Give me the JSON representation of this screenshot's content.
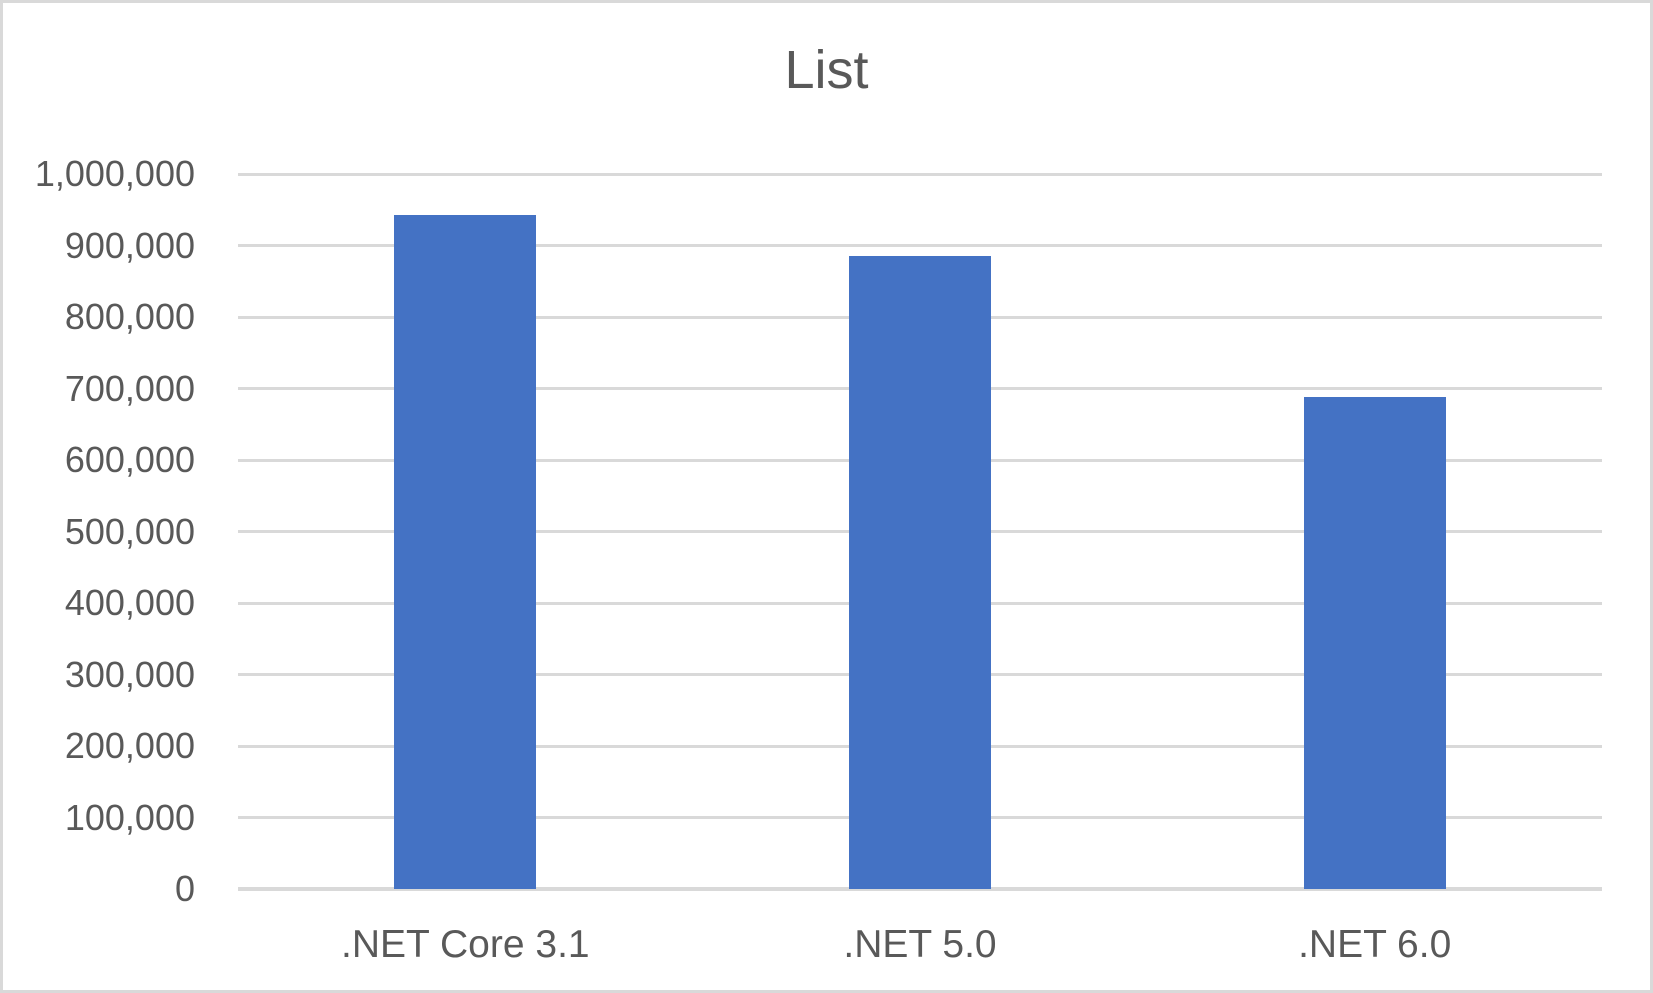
{
  "chart_data": {
    "type": "bar",
    "title": "List",
    "categories": [
      ".NET Core 3.1",
      ".NET 5.0",
      ".NET 6.0"
    ],
    "values": [
      943000,
      886000,
      688000
    ],
    "xlabel": "",
    "ylabel": "",
    "ylim": [
      0,
      1000000
    ],
    "ytick_step": 100000,
    "yticks": [
      {
        "value": 0,
        "label": "0"
      },
      {
        "value": 100000,
        "label": "100,000"
      },
      {
        "value": 200000,
        "label": "200,000"
      },
      {
        "value": 300000,
        "label": "300,000"
      },
      {
        "value": 400000,
        "label": "400,000"
      },
      {
        "value": 500000,
        "label": "500,000"
      },
      {
        "value": 600000,
        "label": "600,000"
      },
      {
        "value": 700000,
        "label": "700,000"
      },
      {
        "value": 800000,
        "label": "800,000"
      },
      {
        "value": 900000,
        "label": "900,000"
      },
      {
        "value": 1000000,
        "label": "1,000,000"
      }
    ],
    "grid": true,
    "legend_position": "none",
    "colors": {
      "bar": "#4472C4",
      "text": "#595959",
      "gridline": "#D9D9D9",
      "axis_line": "#D9D9D9",
      "background": "#FFFFFF",
      "border": "#D9D9D9"
    }
  }
}
